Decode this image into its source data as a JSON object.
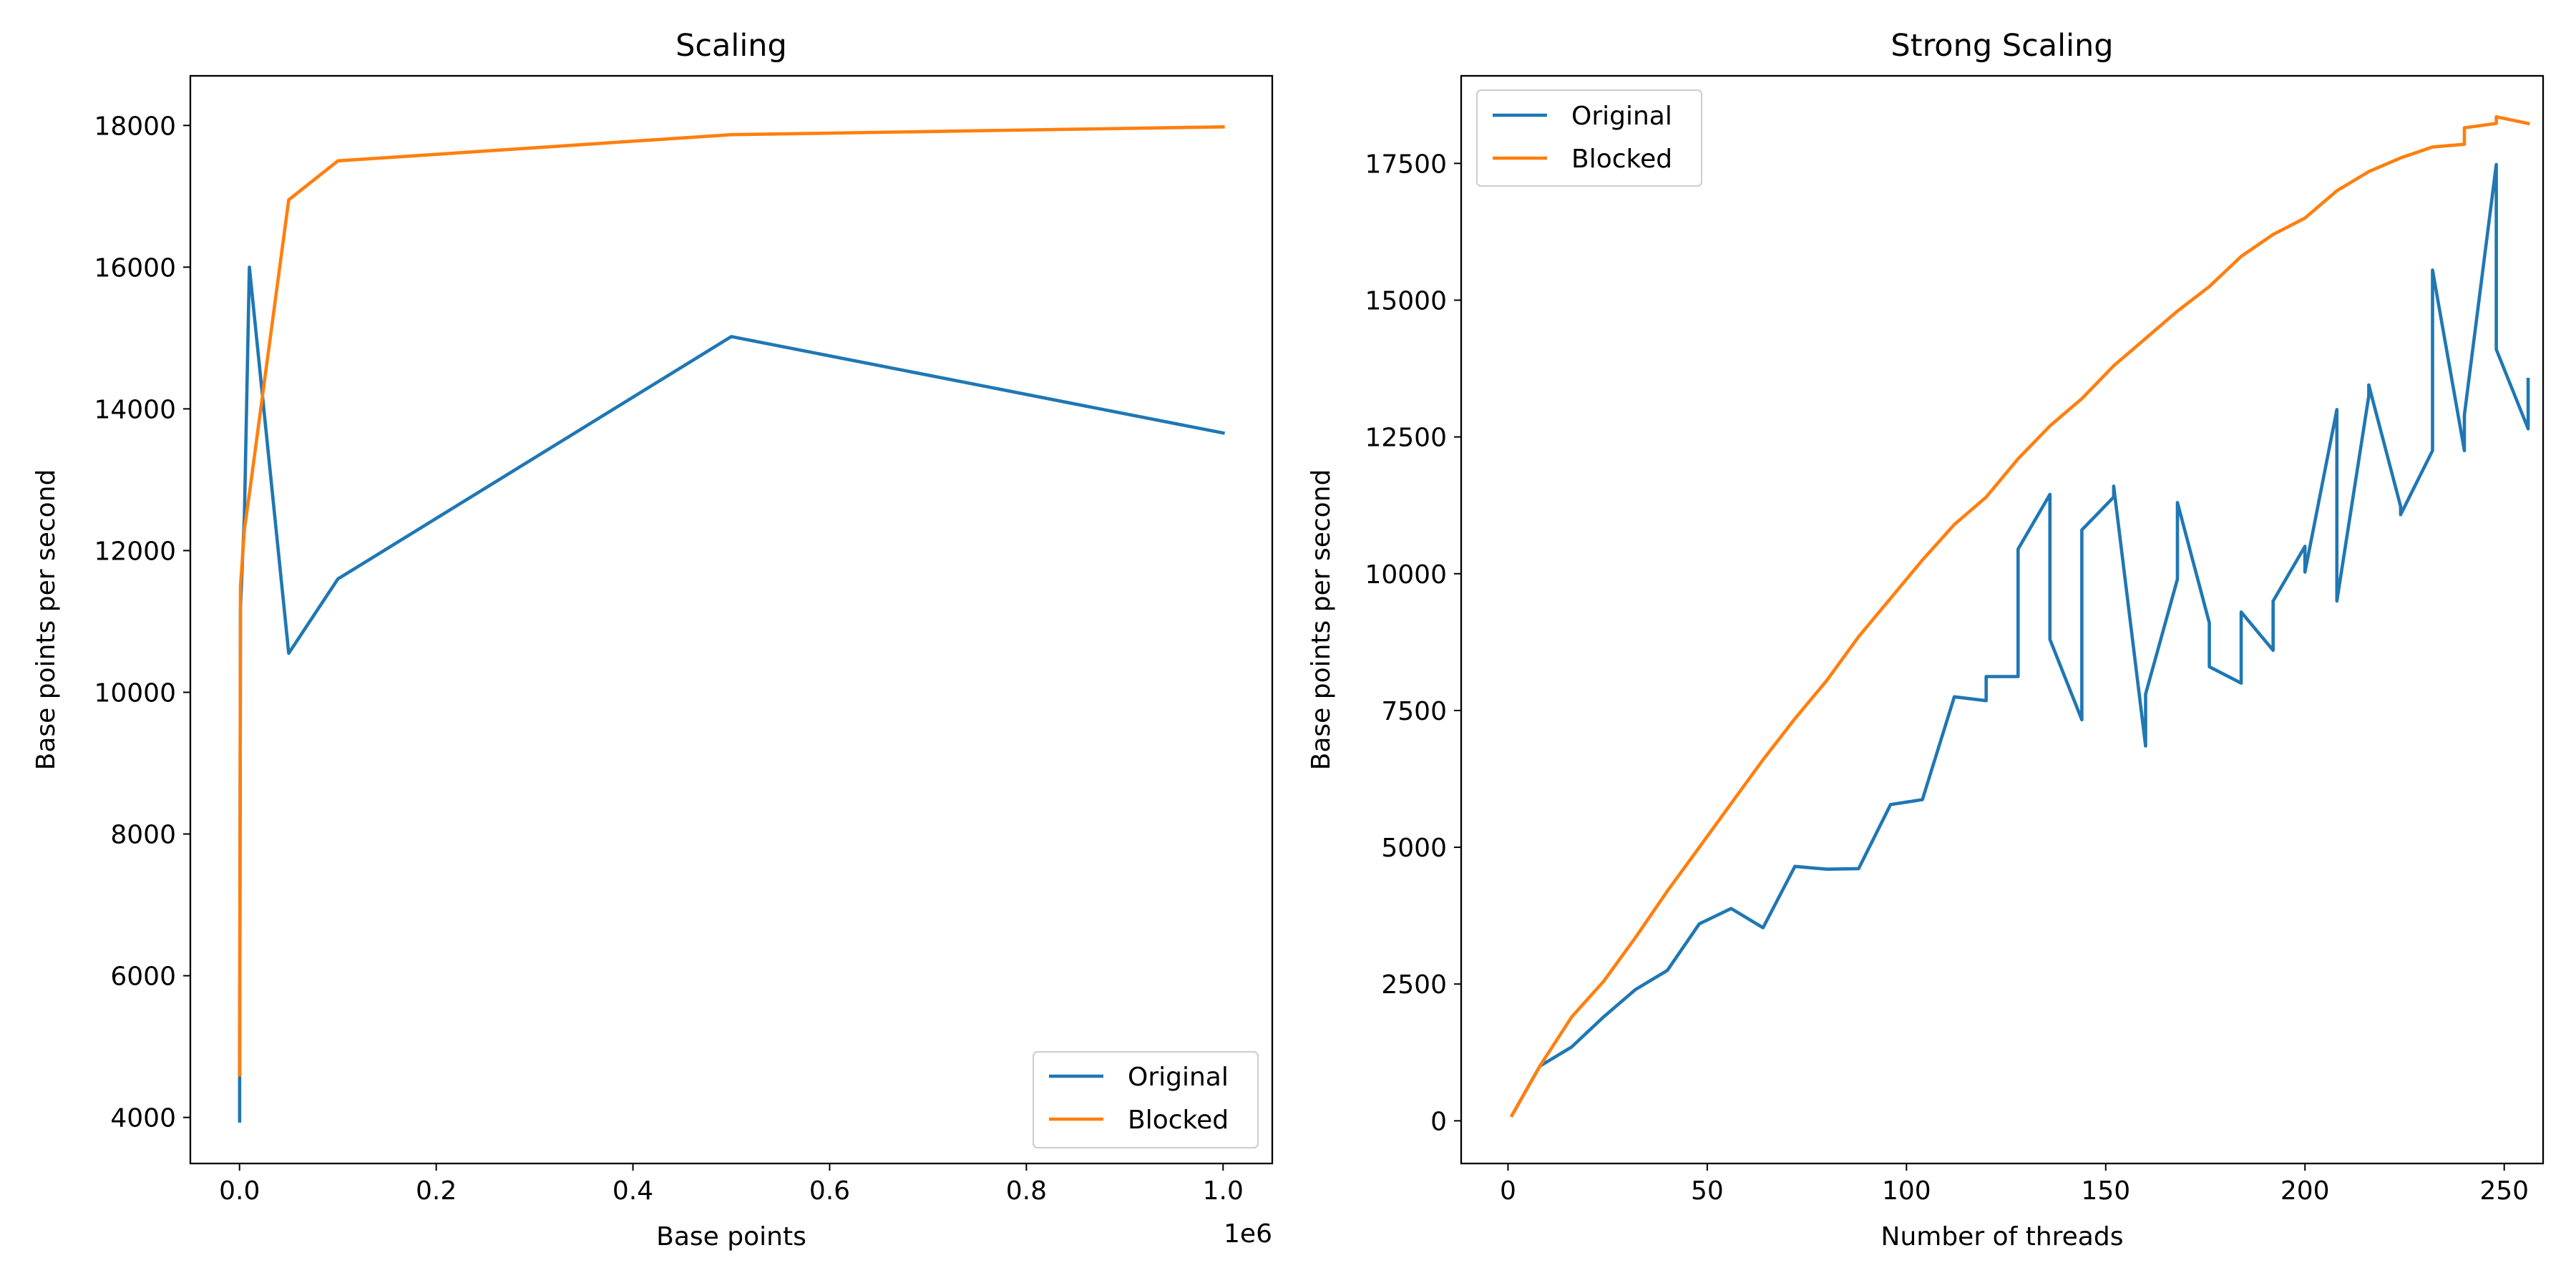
{
  "chart_data": [
    {
      "type": "line",
      "title": "Scaling",
      "xlabel": "Base points",
      "ylabel": "Base points per second",
      "x_offset_label": "1e6",
      "xlim": [
        -0.05,
        1.05
      ],
      "ylim": [
        3350,
        18700
      ],
      "xticks": [
        0.0,
        0.2,
        0.4,
        0.6,
        0.8,
        1.0
      ],
      "xtick_labels": [
        "0.0",
        "0.2",
        "0.4",
        "0.6",
        "0.8",
        "1.0"
      ],
      "yticks": [
        4000,
        6000,
        8000,
        10000,
        12000,
        14000,
        16000,
        18000
      ],
      "ytick_labels": [
        "4000",
        "6000",
        "8000",
        "10000",
        "12000",
        "14000",
        "16000",
        "18000"
      ],
      "legend_position": "lower-right",
      "series": [
        {
          "name": "Original",
          "color": "#1f77b4",
          "x": [
            0.0001,
            0.0001,
            0.001,
            0.005,
            0.01,
            0.05,
            0.1,
            0.5,
            1.0
          ],
          "y": [
            3950,
            4600,
            11200,
            12500,
            16000,
            10550,
            11600,
            15020,
            13660
          ]
        },
        {
          "name": "Blocked",
          "color": "#ff7f0e",
          "x": [
            0.0001,
            0.001,
            0.005,
            0.01,
            0.05,
            0.1,
            0.5,
            1.0
          ],
          "y": [
            4600,
            11500,
            12300,
            12800,
            16950,
            17500,
            17870,
            17980
          ]
        }
      ]
    },
    {
      "type": "line",
      "title": "Strong Scaling",
      "xlabel": "Number of threads",
      "ylabel": "Base points per second",
      "xlim": [
        -11.75,
        259.75
      ],
      "ylim": [
        -780,
        19100
      ],
      "xticks": [
        0,
        50,
        100,
        150,
        200,
        250
      ],
      "xtick_labels": [
        "0",
        "50",
        "100",
        "150",
        "200",
        "250"
      ],
      "yticks": [
        0,
        2500,
        5000,
        7500,
        10000,
        12500,
        15000,
        17500
      ],
      "ytick_labels": [
        "0",
        "2500",
        "5000",
        "7500",
        "10000",
        "12500",
        "15000",
        "17500"
      ],
      "legend_position": "upper-left",
      "series": [
        {
          "name": "Original",
          "color": "#1f77b4",
          "x": [
            1,
            8,
            16,
            24,
            32,
            40,
            48,
            56,
            64,
            72,
            80,
            88,
            96,
            104,
            112,
            120,
            120,
            128,
            128,
            136,
            136,
            144,
            144,
            152,
            152,
            160,
            160,
            168,
            168,
            176,
            176,
            184,
            184,
            192,
            192,
            200,
            200,
            208,
            208,
            216,
            216,
            224,
            224,
            232,
            232,
            240,
            240,
            248,
            248,
            256,
            256
          ],
          "y": [
            100,
            1000,
            1350,
            1900,
            2400,
            2750,
            3600,
            3880,
            3530,
            4650,
            4600,
            4610,
            5780,
            5870,
            7750,
            7680,
            8120,
            8120,
            10450,
            11450,
            8800,
            7330,
            10800,
            11400,
            11600,
            6850,
            7800,
            9900,
            11300,
            9100,
            8300,
            8000,
            9300,
            8600,
            9500,
            10500,
            10030,
            13000,
            9500,
            13250,
            13450,
            11230,
            11080,
            12250,
            15550,
            12250,
            12900,
            17480,
            14100,
            12650,
            13550
          ]
        },
        {
          "name": "Blocked",
          "color": "#ff7f0e",
          "x": [
            1,
            8,
            16,
            24,
            32,
            40,
            48,
            56,
            64,
            72,
            80,
            88,
            96,
            104,
            112,
            120,
            128,
            136,
            144,
            152,
            160,
            168,
            176,
            184,
            192,
            200,
            208,
            216,
            224,
            232,
            240,
            240,
            248,
            248,
            256
          ],
          "y": [
            100,
            1000,
            1900,
            2550,
            3350,
            4200,
            5000,
            5800,
            6600,
            7350,
            8050,
            8850,
            9550,
            10250,
            10900,
            11400,
            12100,
            12700,
            13200,
            13800,
            14300,
            14800,
            15250,
            15800,
            16200,
            16500,
            17000,
            17350,
            17600,
            17800,
            17850,
            18150,
            18230,
            18350,
            18230
          ]
        }
      ]
    }
  ]
}
